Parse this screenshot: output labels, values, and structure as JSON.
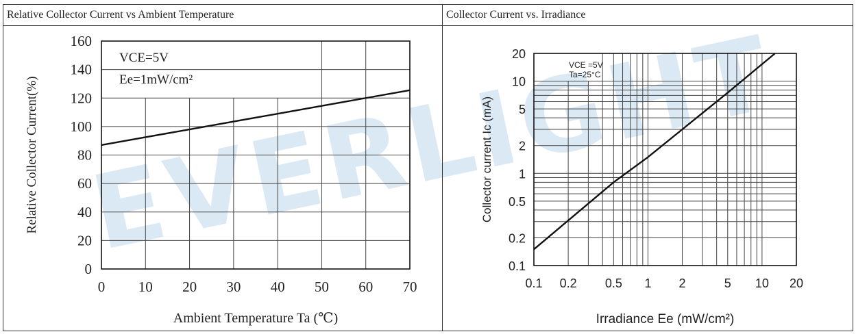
{
  "watermark": "EVERLIGHT",
  "chart_data": [
    {
      "type": "line",
      "title": "Relative Collector Current vs Ambient Temperature",
      "xlabel": "Ambient Temperature Ta (℃)",
      "ylabel": "Relative Collector Current(%)",
      "xlim": [
        0,
        70
      ],
      "ylim": [
        0,
        160
      ],
      "xticks": [
        0,
        10,
        20,
        30,
        40,
        50,
        60,
        70
      ],
      "yticks": [
        0,
        20,
        40,
        60,
        80,
        100,
        120,
        140,
        160
      ],
      "grid": true,
      "annotation": [
        "VCE=5V",
        "Ee=1mW/cm²"
      ],
      "series": [
        {
          "x": [
            0,
            10,
            20,
            30,
            40,
            50,
            60,
            70
          ],
          "y": [
            87,
            92.5,
            98,
            103.5,
            109,
            114.5,
            120,
            125.5
          ]
        }
      ]
    },
    {
      "type": "line",
      "title": "Collector Current vs. Irradiance",
      "xlabel": "Irradiance Ee (mW/cm²)",
      "ylabel": "Collector current Ic (mA)",
      "xscale": "log",
      "yscale": "log",
      "xlim": [
        0.1,
        20
      ],
      "ylim": [
        0.1,
        20
      ],
      "xticks": [
        "0.1",
        "0.2",
        "0.5",
        "1",
        "2",
        "5",
        "10",
        "20"
      ],
      "yticks": [
        "0.1",
        "0.2",
        "0.5",
        "1",
        "2",
        "5",
        "10",
        "20"
      ],
      "grid": true,
      "annotation": [
        "VCE =5V",
        "Ta=25°C"
      ],
      "series": [
        {
          "x": [
            0.1,
            0.5,
            1,
            5,
            13
          ],
          "y": [
            0.15,
            0.8,
            1.5,
            7.5,
            20
          ]
        }
      ]
    }
  ]
}
